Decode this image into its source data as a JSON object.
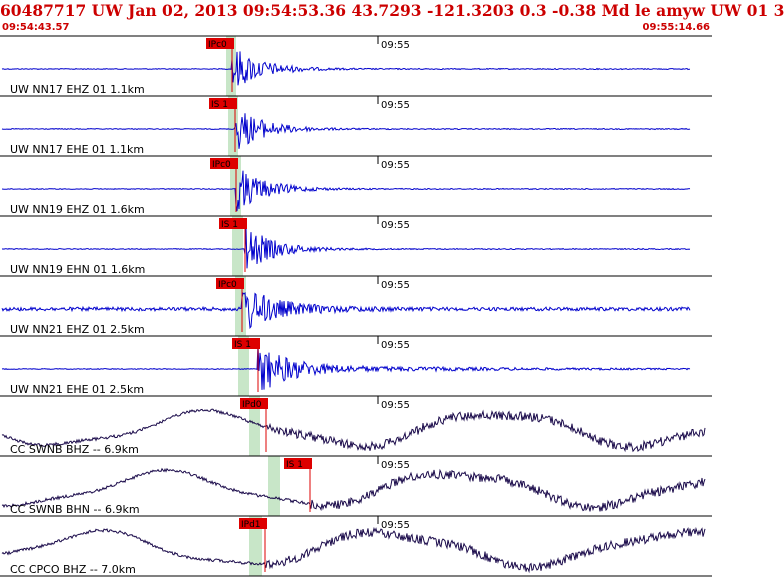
{
  "header": {
    "title": "60487717 UW Jan 02, 2013 09:54:53.36   43.7293 -121.3203  0.3 -0.38 Md le amyw UW 01   3",
    "start_time": "09:54:43.57",
    "end_time": "09:55:14.66"
  },
  "colors": {
    "header_text": "#cc0000",
    "trace_high_freq": "#0000cc",
    "trace_broadband": "#1a0a4a",
    "pick": "#dd0000",
    "pick_window": "#c8e6c8",
    "grid": "#000000"
  },
  "time_tick_label": "09:55",
  "traces": [
    {
      "label": "UW NN17 EHZ 01 1.1km",
      "pick": "IPc0",
      "type": "hf"
    },
    {
      "label": "UW NN17 EHE 01 1.1km",
      "pick": "IS 1",
      "type": "hf"
    },
    {
      "label": "UW NN19 EHZ 01 1.6km",
      "pick": "IPc0",
      "type": "hf"
    },
    {
      "label": "UW NN19 EHN 01 1.6km",
      "pick": "IS 1",
      "type": "hf"
    },
    {
      "label": "UW NN21 EHZ 01 2.5km",
      "pick": "IPc0",
      "type": "hf"
    },
    {
      "label": "UW NN21 EHE 01 2.5km",
      "pick": "IS 1",
      "type": "hf"
    },
    {
      "label": "CC SWNB BHZ -- 6.9km",
      "pick": "IPd0",
      "type": "bb"
    },
    {
      "label": "CC SWNB BHN -- 6.9km",
      "pick": "IS 1",
      "type": "bb"
    },
    {
      "label": "CC CPCO BHZ -- 7.0km",
      "pick": "IPd1",
      "type": "bb"
    }
  ]
}
